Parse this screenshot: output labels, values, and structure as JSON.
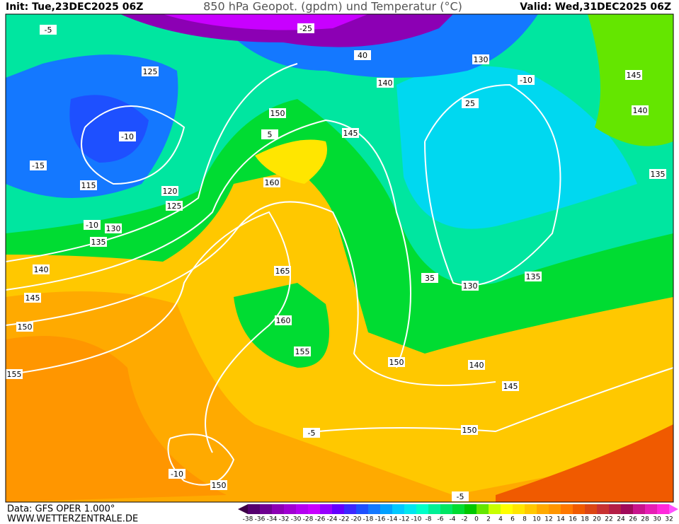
{
  "header": {
    "init": "Init: Tue,23DEC2025 06Z",
    "title": "850 hPa Geopot. (gpdm) und Temperatur (°C)",
    "valid": "Valid: Wed,31DEC2025 06Z"
  },
  "footer": {
    "data": "Data: GFS OPER 1.000°",
    "site": "WWW.WETTERZENTRALE.DE"
  },
  "colorbar": {
    "labels": [
      -38,
      -36,
      -34,
      -32,
      -30,
      -28,
      -26,
      -24,
      -22,
      -20,
      -18,
      -16,
      -14,
      -12,
      -10,
      -8,
      -6,
      -4,
      -2,
      0,
      2,
      4,
      6,
      8,
      10,
      12,
      14,
      16,
      18,
      20,
      22,
      24,
      26,
      28,
      30,
      32
    ],
    "colors": [
      "#3c0046",
      "#55006e",
      "#6e0090",
      "#8c00b4",
      "#a000d2",
      "#b400f0",
      "#c800ff",
      "#9600ff",
      "#6400ff",
      "#3c28ff",
      "#1e50ff",
      "#1478ff",
      "#00a0ff",
      "#00c8ff",
      "#00e6f0",
      "#00ffc8",
      "#00f096",
      "#00e664",
      "#00dc32",
      "#00c800",
      "#64e600",
      "#c8ff00",
      "#ffff00",
      "#ffe600",
      "#ffc800",
      "#ffaa00",
      "#ff9600",
      "#ff7800",
      "#f05a00",
      "#dc4614",
      "#c83232",
      "#b41e46",
      "#a00a5a",
      "#c8148c",
      "#e61eb4",
      "#ff28dc",
      "#ff50ff"
    ]
  },
  "contour_labels": [
    "-5",
    "-25",
    "125",
    "40",
    "140",
    "130",
    "145",
    "-10",
    "140",
    "150",
    "25",
    "145",
    "5",
    "-10",
    "-15",
    "160",
    "135",
    "115",
    "120",
    "125",
    "-10",
    "130",
    "135",
    "165",
    "35",
    "130",
    "135",
    "140",
    "145",
    "160",
    "150",
    "155",
    "150",
    "140",
    "155",
    "145",
    "150",
    "150",
    "-5",
    "-10",
    "-5"
  ]
}
